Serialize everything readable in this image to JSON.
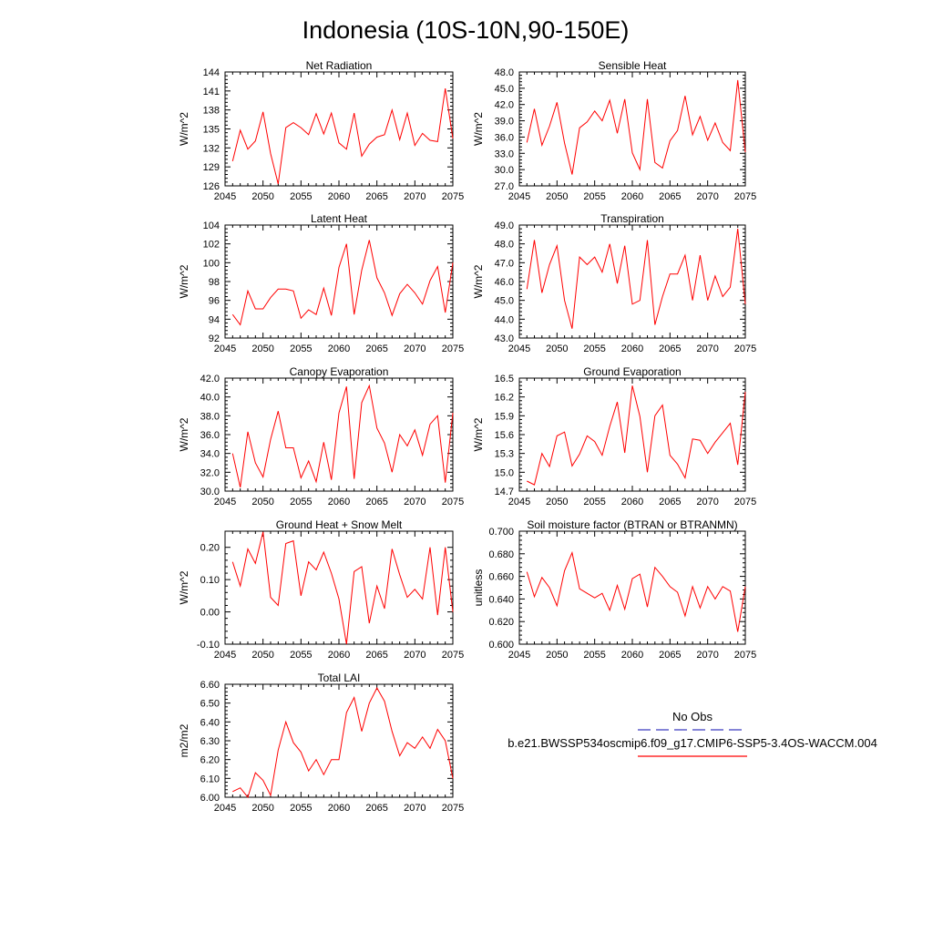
{
  "title": "Indonesia (10S-10N,90-150E)",
  "colors": {
    "series": "#ff0000",
    "obs": "#3b3bbf",
    "axis": "#000000"
  },
  "legend": {
    "obs_label": "No Obs",
    "model_label": "b.e21.BWSSP534oscmip6.f09_g17.CMIP6-SSP5-3.4OS-WACCM.004"
  },
  "chart_data": [
    {
      "type": "line",
      "title": "Net Radiation",
      "ylabel": "W/m^2",
      "xlim": [
        2045,
        2075
      ],
      "ylim": [
        126,
        144
      ],
      "xticks": [
        2045,
        2050,
        2055,
        2060,
        2065,
        2070,
        2075
      ],
      "xtick_labels": [
        "2045",
        "2050",
        "2055",
        "2060",
        "2065",
        "2070",
        "2075"
      ],
      "yticks": [
        126,
        129,
        132,
        135,
        138,
        141,
        144
      ],
      "ytick_labels": [
        "126",
        "129",
        "132",
        "135",
        "138",
        "141",
        "144"
      ],
      "x": [
        2046,
        2047,
        2048,
        2049,
        2050,
        2051,
        2052,
        2053,
        2054,
        2055,
        2056,
        2057,
        2058,
        2059,
        2060,
        2061,
        2062,
        2063,
        2064,
        2065,
        2066,
        2067,
        2068,
        2069,
        2070,
        2071,
        2072,
        2073,
        2074,
        2075
      ],
      "values": [
        129.9,
        134.8,
        131.8,
        133.1,
        137.7,
        131.1,
        126.3,
        135.2,
        136.0,
        135.2,
        134.1,
        137.4,
        134.2,
        137.5,
        132.8,
        131.8,
        137.5,
        130.7,
        132.6,
        133.7,
        134.1,
        138.0,
        133.3,
        137.5,
        132.4,
        134.3,
        133.2,
        133.0,
        141.4,
        133.5
      ]
    },
    {
      "type": "line",
      "title": "Sensible Heat",
      "ylabel": "W/m^2",
      "xlim": [
        2045,
        2075
      ],
      "ylim": [
        27,
        48
      ],
      "xticks": [
        2045,
        2050,
        2055,
        2060,
        2065,
        2070,
        2075
      ],
      "xtick_labels": [
        "2045",
        "2050",
        "2055",
        "2060",
        "2065",
        "2070",
        "2075"
      ],
      "yticks": [
        27,
        30,
        33,
        36,
        39,
        42,
        45,
        48
      ],
      "ytick_labels": [
        "27.0",
        "30.0",
        "33.0",
        "36.0",
        "39.0",
        "42.0",
        "45.0",
        "48.0"
      ],
      "x": [
        2046,
        2047,
        2048,
        2049,
        2050,
        2051,
        2052,
        2053,
        2054,
        2055,
        2056,
        2057,
        2058,
        2059,
        2060,
        2061,
        2062,
        2063,
        2064,
        2065,
        2066,
        2067,
        2068,
        2069,
        2070,
        2071,
        2072,
        2073,
        2074,
        2075
      ],
      "values": [
        35.0,
        41.2,
        34.5,
        38.0,
        42.4,
        34.9,
        29.1,
        37.7,
        38.8,
        40.8,
        39.0,
        42.8,
        36.7,
        43.0,
        33.1,
        30.0,
        43.0,
        31.3,
        30.3,
        35.3,
        37.2,
        43.6,
        36.4,
        39.8,
        35.4,
        38.6,
        35.0,
        33.5,
        46.5,
        33.2
      ]
    },
    {
      "type": "line",
      "title": "Latent Heat",
      "ylabel": "W/m^2",
      "xlim": [
        2045,
        2075
      ],
      "ylim": [
        92,
        104
      ],
      "xticks": [
        2045,
        2050,
        2055,
        2060,
        2065,
        2070,
        2075
      ],
      "xtick_labels": [
        "2045",
        "2050",
        "2055",
        "2060",
        "2065",
        "2070",
        "2075"
      ],
      "yticks": [
        92,
        94,
        96,
        98,
        100,
        102,
        104
      ],
      "ytick_labels": [
        "92",
        "94",
        "96",
        "98",
        "100",
        "102",
        "104"
      ],
      "x": [
        2046,
        2047,
        2048,
        2049,
        2050,
        2051,
        2052,
        2053,
        2054,
        2055,
        2056,
        2057,
        2058,
        2059,
        2060,
        2061,
        2062,
        2063,
        2064,
        2065,
        2066,
        2067,
        2068,
        2069,
        2070,
        2071,
        2072,
        2073,
        2074,
        2075
      ],
      "values": [
        94.5,
        93.4,
        97.0,
        95.1,
        95.1,
        96.3,
        97.2,
        97.2,
        97.0,
        94.1,
        95.0,
        94.5,
        97.3,
        94.4,
        99.5,
        102.0,
        94.5,
        99.2,
        102.4,
        98.4,
        96.8,
        94.4,
        96.7,
        97.7,
        96.8,
        95.6,
        98.1,
        99.6,
        94.7,
        100.0
      ]
    },
    {
      "type": "line",
      "title": "Transpiration",
      "ylabel": "W/m^2",
      "xlim": [
        2045,
        2075
      ],
      "ylim": [
        43,
        49
      ],
      "xticks": [
        2045,
        2050,
        2055,
        2060,
        2065,
        2070,
        2075
      ],
      "xtick_labels": [
        "2045",
        "2050",
        "2055",
        "2060",
        "2065",
        "2070",
        "2075"
      ],
      "yticks": [
        43,
        44,
        45,
        46,
        47,
        48,
        49
      ],
      "ytick_labels": [
        "43.0",
        "44.0",
        "45.0",
        "46.0",
        "47.0",
        "48.0",
        "49.0"
      ],
      "x": [
        2046,
        2047,
        2048,
        2049,
        2050,
        2051,
        2052,
        2053,
        2054,
        2055,
        2056,
        2057,
        2058,
        2059,
        2060,
        2061,
        2062,
        2063,
        2064,
        2065,
        2066,
        2067,
        2068,
        2069,
        2070,
        2071,
        2072,
        2073,
        2074,
        2075
      ],
      "values": [
        45.6,
        48.2,
        45.4,
        46.9,
        47.9,
        45.0,
        43.5,
        47.3,
        46.9,
        47.3,
        46.5,
        48.0,
        45.9,
        47.9,
        44.8,
        45.0,
        48.2,
        43.7,
        45.2,
        46.4,
        46.4,
        47.4,
        45.0,
        47.4,
        45.0,
        46.3,
        45.2,
        45.7,
        48.8,
        44.8
      ]
    },
    {
      "type": "line",
      "title": "Canopy Evaporation",
      "ylabel": "W/m^2",
      "xlim": [
        2045,
        2075
      ],
      "ylim": [
        30,
        42
      ],
      "xticks": [
        2045,
        2050,
        2055,
        2060,
        2065,
        2070,
        2075
      ],
      "xtick_labels": [
        "2045",
        "2050",
        "2055",
        "2060",
        "2065",
        "2070",
        "2075"
      ],
      "yticks": [
        30,
        32,
        34,
        36,
        38,
        40,
        42
      ],
      "ytick_labels": [
        "30.0",
        "32.0",
        "34.0",
        "36.0",
        "38.0",
        "40.0",
        "42.0"
      ],
      "x": [
        2046,
        2047,
        2048,
        2049,
        2050,
        2051,
        2052,
        2053,
        2054,
        2055,
        2056,
        2057,
        2058,
        2059,
        2060,
        2061,
        2062,
        2063,
        2064,
        2065,
        2066,
        2067,
        2068,
        2069,
        2070,
        2071,
        2072,
        2073,
        2074,
        2075
      ],
      "values": [
        34.0,
        30.4,
        36.3,
        33.0,
        31.5,
        35.5,
        38.5,
        34.6,
        34.6,
        31.4,
        33.2,
        31.0,
        35.2,
        31.2,
        38.3,
        41.1,
        31.3,
        39.4,
        41.2,
        36.7,
        35.1,
        32.0,
        36.0,
        34.8,
        36.5,
        33.8,
        37.1,
        38.0,
        30.9,
        38.3
      ]
    },
    {
      "type": "line",
      "title": "Ground Evaporation",
      "ylabel": "W/m^2",
      "xlim": [
        2045,
        2075
      ],
      "ylim": [
        14.7,
        16.5
      ],
      "xticks": [
        2045,
        2050,
        2055,
        2060,
        2065,
        2070,
        2075
      ],
      "xtick_labels": [
        "2045",
        "2050",
        "2055",
        "2060",
        "2065",
        "2070",
        "2075"
      ],
      "yticks": [
        14.7,
        15.0,
        15.3,
        15.6,
        15.9,
        16.2,
        16.5
      ],
      "ytick_labels": [
        "14.7",
        "15.0",
        "15.3",
        "15.6",
        "15.9",
        "16.2",
        "16.5"
      ],
      "x": [
        2046,
        2047,
        2048,
        2049,
        2050,
        2051,
        2052,
        2053,
        2054,
        2055,
        2056,
        2057,
        2058,
        2059,
        2060,
        2061,
        2062,
        2063,
        2064,
        2065,
        2066,
        2067,
        2068,
        2069,
        2070,
        2071,
        2072,
        2073,
        2074,
        2075
      ],
      "values": [
        14.86,
        14.8,
        15.3,
        15.09,
        15.58,
        15.64,
        15.1,
        15.29,
        15.58,
        15.49,
        15.27,
        15.73,
        16.12,
        15.31,
        16.38,
        15.89,
        15.0,
        15.9,
        16.07,
        15.27,
        15.13,
        14.91,
        15.53,
        15.51,
        15.3,
        15.48,
        15.63,
        15.78,
        15.12,
        16.28
      ]
    },
    {
      "type": "line",
      "title": "Ground Heat + Snow Melt",
      "ylabel": "W/m^2",
      "xlim": [
        2045,
        2075
      ],
      "ylim": [
        -0.1,
        0.25
      ],
      "xticks": [
        2045,
        2050,
        2055,
        2060,
        2065,
        2070,
        2075
      ],
      "xtick_labels": [
        "2045",
        "2050",
        "2055",
        "2060",
        "2065",
        "2070",
        "2075"
      ],
      "yticks": [
        -0.1,
        0.0,
        0.1,
        0.2
      ],
      "ytick_labels": [
        "-0.10",
        "0.00",
        "0.10",
        "0.20"
      ],
      "x": [
        2046,
        2047,
        2048,
        2049,
        2050,
        2051,
        2052,
        2053,
        2054,
        2055,
        2056,
        2057,
        2058,
        2059,
        2060,
        2061,
        2062,
        2063,
        2064,
        2065,
        2066,
        2067,
        2068,
        2069,
        2070,
        2071,
        2072,
        2073,
        2074,
        2075
      ],
      "values": [
        0.155,
        0.08,
        0.195,
        0.15,
        0.248,
        0.045,
        0.02,
        0.212,
        0.22,
        0.05,
        0.155,
        0.13,
        0.185,
        0.12,
        0.04,
        -0.1,
        0.125,
        0.14,
        -0.035,
        0.08,
        0.01,
        0.195,
        0.115,
        0.045,
        0.07,
        0.04,
        0.2,
        -0.01,
        0.2,
        0.0
      ]
    },
    {
      "type": "line",
      "title": "Soil moisture factor (BTRAN or BTRANMN)",
      "ylabel": "unitless",
      "xlim": [
        2045,
        2075
      ],
      "ylim": [
        0.6,
        0.7
      ],
      "xticks": [
        2045,
        2050,
        2055,
        2060,
        2065,
        2070,
        2075
      ],
      "xtick_labels": [
        "2045",
        "2050",
        "2055",
        "2060",
        "2065",
        "2070",
        "2075"
      ],
      "yticks": [
        0.6,
        0.62,
        0.64,
        0.66,
        0.68,
        0.7
      ],
      "ytick_labels": [
        "0.600",
        "0.620",
        "0.640",
        "0.660",
        "0.680",
        "0.700"
      ],
      "x": [
        2046,
        2047,
        2048,
        2049,
        2050,
        2051,
        2052,
        2053,
        2054,
        2055,
        2056,
        2057,
        2058,
        2059,
        2060,
        2061,
        2062,
        2063,
        2064,
        2065,
        2066,
        2067,
        2068,
        2069,
        2070,
        2071,
        2072,
        2073,
        2074,
        2075
      ],
      "values": [
        0.664,
        0.642,
        0.659,
        0.65,
        0.634,
        0.665,
        0.681,
        0.649,
        0.645,
        0.641,
        0.645,
        0.63,
        0.652,
        0.631,
        0.658,
        0.662,
        0.633,
        0.668,
        0.66,
        0.651,
        0.646,
        0.625,
        0.651,
        0.632,
        0.651,
        0.64,
        0.651,
        0.647,
        0.611,
        0.651
      ]
    },
    {
      "type": "line",
      "title": "Total LAI",
      "ylabel": "m2/m2",
      "xlim": [
        2045,
        2075
      ],
      "ylim": [
        6.0,
        6.6
      ],
      "xticks": [
        2045,
        2050,
        2055,
        2060,
        2065,
        2070,
        2075
      ],
      "xtick_labels": [
        "2045",
        "2050",
        "2055",
        "2060",
        "2065",
        "2070",
        "2075"
      ],
      "yticks": [
        6.0,
        6.1,
        6.2,
        6.3,
        6.4,
        6.5,
        6.6
      ],
      "ytick_labels": [
        "6.00",
        "6.10",
        "6.20",
        "6.30",
        "6.40",
        "6.50",
        "6.60"
      ],
      "x": [
        2046,
        2047,
        2048,
        2049,
        2050,
        2051,
        2052,
        2053,
        2054,
        2055,
        2056,
        2057,
        2058,
        2059,
        2060,
        2061,
        2062,
        2063,
        2064,
        2065,
        2066,
        2067,
        2068,
        2069,
        2070,
        2071,
        2072,
        2073,
        2074,
        2075
      ],
      "values": [
        6.03,
        6.05,
        6.0,
        6.13,
        6.09,
        6.01,
        6.25,
        6.4,
        6.29,
        6.24,
        6.14,
        6.2,
        6.12,
        6.2,
        6.2,
        6.45,
        6.53,
        6.35,
        6.5,
        6.58,
        6.51,
        6.35,
        6.22,
        6.29,
        6.26,
        6.32,
        6.26,
        6.36,
        6.3,
        6.1
      ]
    }
  ]
}
